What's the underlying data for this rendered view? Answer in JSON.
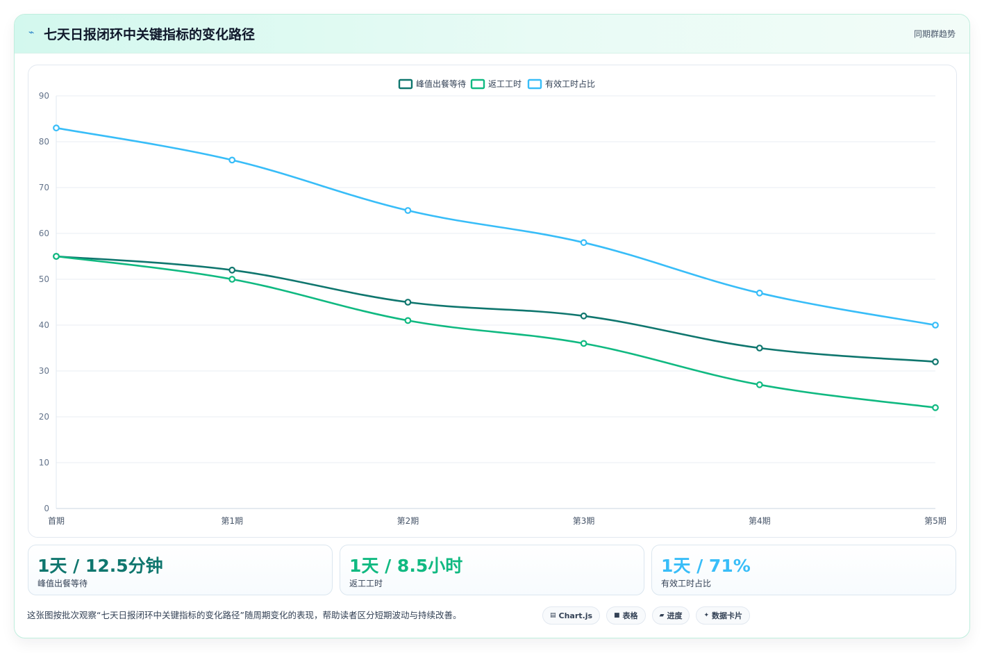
{
  "header": {
    "icon": "bolt-icon",
    "title": "七天日报闭环中关键指标的变化路径",
    "right_tag": "同期群趋势"
  },
  "chart_data": {
    "type": "line",
    "categories": [
      "首期",
      "第1期",
      "第2期",
      "第3期",
      "第4期",
      "第5期"
    ],
    "series": [
      {
        "name": "峰值出餐等待",
        "color": "#0f766e",
        "values": [
          55,
          52,
          45,
          42,
          35,
          32
        ]
      },
      {
        "name": "返工工时",
        "color": "#10b981",
        "values": [
          55,
          50,
          41,
          36,
          27,
          22
        ]
      },
      {
        "name": "有效工时占比",
        "color": "#38bdf8",
        "values": [
          83,
          76,
          65,
          58,
          47,
          40
        ]
      }
    ],
    "ylim": [
      0,
      90
    ],
    "yticks": [
      "0",
      "10",
      "20",
      "30",
      "40",
      "50",
      "60",
      "70",
      "80",
      "90"
    ],
    "legend": "top-center",
    "grid": true,
    "curve": "smooth"
  },
  "stats": [
    {
      "value": "1天 / 12.5分钟",
      "label": "峰值出餐等待",
      "color": "#0f766e"
    },
    {
      "value": "1天 / 8.5小时",
      "label": "返工工时",
      "color": "#10b981"
    },
    {
      "value": "1天 / 71%",
      "label": "有效工时占比",
      "color": "#38bdf8"
    }
  ],
  "footer": {
    "note": "这张图按批次观察“七天日报闭环中关键指标的变化路径”随周期变化的表现，帮助读者区分短期波动与持续改善。",
    "chips": [
      {
        "icon": "chart-icon",
        "glyph": "▤",
        "label": "Chart.js"
      },
      {
        "icon": "table-icon",
        "glyph": "■",
        "label": "表格"
      },
      {
        "icon": "progress-icon",
        "glyph": "▰",
        "label": "进度"
      },
      {
        "icon": "sparkle-icon",
        "glyph": "✦",
        "label": "数据卡片"
      }
    ]
  }
}
